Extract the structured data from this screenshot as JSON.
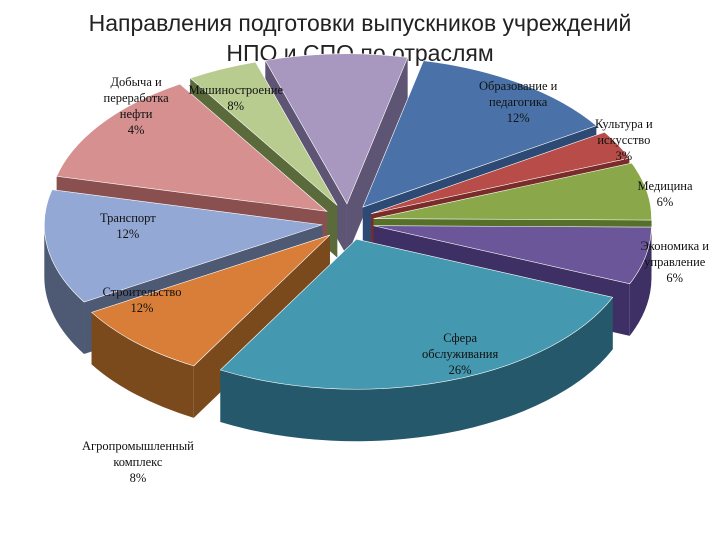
{
  "title": {
    "line1": "Направления подготовки выпускников учреждений",
    "line2": "НПО и СПО по отраслям"
  },
  "chart_data": {
    "type": "pie",
    "style": "3d-exploded",
    "legend": "none",
    "slices": [
      {
        "key": "obrazovanie",
        "label_lines": [
          "Образование и",
          "педагогика"
        ],
        "value_label": "12%",
        "value": 12,
        "color": "#4a72a8",
        "side": "#2c4a74"
      },
      {
        "key": "kultura",
        "label_lines": [
          "Культура и",
          "искусство"
        ],
        "value_label": "3%",
        "value": 3,
        "color": "#b84c48",
        "side": "#7a2c2a"
      },
      {
        "key": "medicina",
        "label_lines": [
          "Медицина"
        ],
        "value_label": "6%",
        "value": 6,
        "color": "#8aa84a",
        "side": "#56702a"
      },
      {
        "key": "ekonomika",
        "label_lines": [
          "Экономика и",
          "управление"
        ],
        "value_label": "6%",
        "value": 6,
        "color": "#6a5698",
        "side": "#3e3064"
      },
      {
        "key": "sfera",
        "label_lines": [
          "Сфера",
          "обслуживания"
        ],
        "value_label": "26%",
        "value": 26,
        "color": "#4498b0",
        "side": "#24586a"
      },
      {
        "key": "agro",
        "label_lines": [
          "Агропромышленный",
          "комплекс"
        ],
        "value_label": "8%",
        "value": 8,
        "color": "#d87e38",
        "side": "#7a4a1c"
      },
      {
        "key": "stroitelstvo",
        "label_lines": [
          "Строительство"
        ],
        "value_label": "12%",
        "value": 12,
        "color": "#93a8d4",
        "side": "#4e5a74"
      },
      {
        "key": "transport",
        "label_lines": [
          "Транспорт"
        ],
        "value_label": "12%",
        "value": 12,
        "color": "#d69090",
        "side": "#8a5050"
      },
      {
        "key": "dobycha",
        "label_lines": [
          "Добыча и",
          "переработка",
          "нефти"
        ],
        "value_label": "4%",
        "value": 4,
        "color": "#b8cc90",
        "side": "#5a6a3a"
      },
      {
        "key": "mashinostroenie",
        "label_lines": [
          "Машиностроение"
        ],
        "value_label": "8%",
        "value": 8,
        "color": "#a898c0",
        "side": "#5e5474"
      }
    ]
  }
}
